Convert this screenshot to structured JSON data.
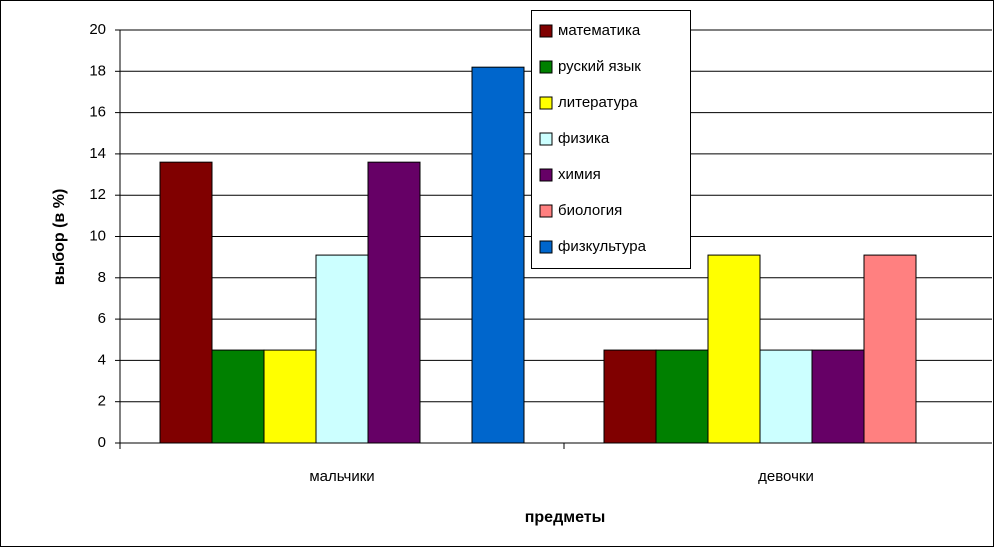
{
  "chart_data": {
    "type": "bar",
    "x_label": "предметы",
    "y_label": "выбор (в %)",
    "categories": [
      "мальчики",
      "девочки"
    ],
    "series": [
      {
        "name": "математика",
        "color": "#800000",
        "values": [
          13.6,
          4.5
        ]
      },
      {
        "name": "руский язык",
        "color": "#008000",
        "values": [
          4.5,
          4.5
        ]
      },
      {
        "name": "литература",
        "color": "#ffff00",
        "values": [
          4.5,
          9.1
        ]
      },
      {
        "name": "физика",
        "color": "#ccffff",
        "values": [
          9.1,
          4.5
        ]
      },
      {
        "name": "химия",
        "color": "#660066",
        "values": [
          13.6,
          4.5
        ]
      },
      {
        "name": "биология",
        "color": "#ff8080",
        "values": [
          0,
          9.1
        ]
      },
      {
        "name": "физкультура",
        "color": "#0066cc",
        "values": [
          18.2,
          0
        ]
      }
    ],
    "ylim": [
      0,
      20
    ],
    "yticks": [
      0,
      2,
      4,
      6,
      8,
      10,
      12,
      14,
      16,
      18,
      20
    ],
    "grid": true,
    "legend": "top"
  }
}
